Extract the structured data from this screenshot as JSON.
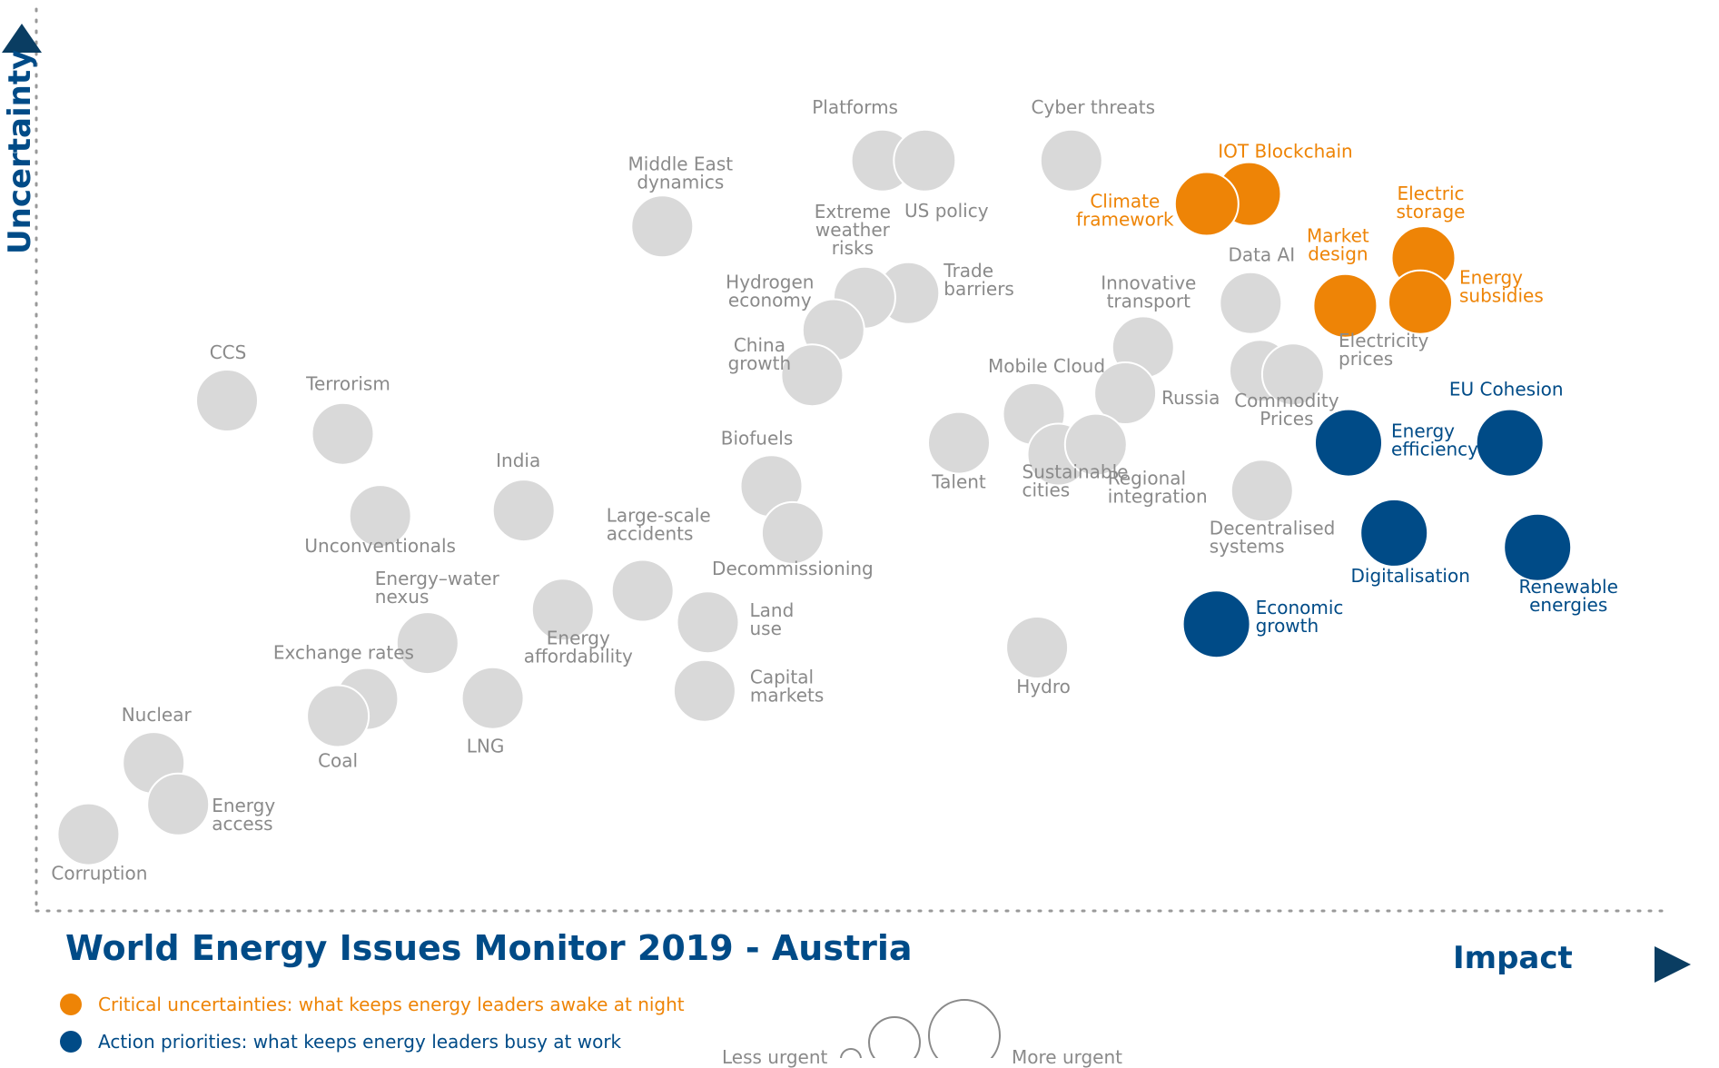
{
  "title": "World Energy Issues Monitor 2019 - Austria",
  "legend": {
    "critical": {
      "label": "Critical uncertainties: what keeps energy leaders awake at night",
      "color": "#ee8406"
    },
    "action": {
      "label": "Action priorities: what keeps energy leaders busy at work",
      "color": "#004b87"
    },
    "size_less": "Less urgent",
    "size_more": "More urgent"
  },
  "colors": {
    "neutral": "#d9d9d9",
    "critical": "#ee8406",
    "action": "#004b87",
    "axis": "#004b87",
    "label_neutral": "#8a8a8a"
  },
  "chart_data": {
    "type": "scatter",
    "title": "World Energy Issues Monitor 2019 - Austria",
    "xlabel": "Impact",
    "ylabel": "Uncertainty",
    "xlim": [
      0,
      100
    ],
    "ylim": [
      0,
      100
    ],
    "grid": false,
    "legend_position": "bottom-left",
    "points": [
      {
        "label": "Platforms",
        "x": 51.9,
        "y": 83.2,
        "cat": "neutral"
      },
      {
        "label": "US policy",
        "x": 54.5,
        "y": 83.2,
        "cat": "neutral"
      },
      {
        "label": "Cyber threats",
        "x": 63.5,
        "y": 83.2,
        "cat": "neutral"
      },
      {
        "label": "IOT Blockchain",
        "x": 74.4,
        "y": 79.5,
        "cat": "critical"
      },
      {
        "label": "Climate framework",
        "x": 71.8,
        "y": 78.4,
        "cat": "critical"
      },
      {
        "label": "Middle East dynamics",
        "x": 38.4,
        "y": 75.9,
        "cat": "neutral"
      },
      {
        "label": "Electric storage",
        "x": 85.1,
        "y": 72.4,
        "cat": "critical"
      },
      {
        "label": "Market design",
        "x": 80.3,
        "y": 67.1,
        "cat": "critical"
      },
      {
        "label": "Energy subsidies",
        "x": 84.9,
        "y": 67.5,
        "cat": "critical"
      },
      {
        "label": "Data AI",
        "x": 74.5,
        "y": 67.4,
        "cat": "neutral"
      },
      {
        "label": "Trade barriers",
        "x": 53.5,
        "y": 68.5,
        "cat": "neutral"
      },
      {
        "label": "Extreme weather risks",
        "x": 50.8,
        "y": 68.0,
        "cat": "neutral"
      },
      {
        "label": "Hydrogen economy",
        "x": 48.9,
        "y": 64.4,
        "cat": "neutral"
      },
      {
        "label": "China growth",
        "x": 47.6,
        "y": 59.4,
        "cat": "neutral"
      },
      {
        "label": "Innovative transport",
        "x": 67.9,
        "y": 62.5,
        "cat": "neutral"
      },
      {
        "label": "Russia",
        "x": 66.8,
        "y": 57.4,
        "cat": "neutral"
      },
      {
        "label": "Electricity prices",
        "x": 75.1,
        "y": 59.9,
        "cat": "neutral"
      },
      {
        "label": "Commodity Prices",
        "x": 77.1,
        "y": 59.5,
        "cat": "neutral"
      },
      {
        "label": "Mobile Cloud",
        "x": 61.2,
        "y": 55.1,
        "cat": "neutral"
      },
      {
        "label": "Sustainable cities",
        "x": 62.7,
        "y": 50.6,
        "cat": "neutral"
      },
      {
        "label": "Regional integration",
        "x": 65.0,
        "y": 51.7,
        "cat": "neutral"
      },
      {
        "label": "Talent",
        "x": 56.6,
        "y": 51.9,
        "cat": "neutral"
      },
      {
        "label": "EU Cohesion",
        "x": 90.4,
        "y": 51.9,
        "cat": "action"
      },
      {
        "label": "Energy efficiency",
        "x": 80.5,
        "y": 51.9,
        "cat": "action"
      },
      {
        "label": "Decentralised systems",
        "x": 75.2,
        "y": 46.6,
        "cat": "neutral"
      },
      {
        "label": "Digitalisation",
        "x": 83.3,
        "y": 41.9,
        "cat": "action"
      },
      {
        "label": "Renewable energies",
        "x": 92.1,
        "y": 40.3,
        "cat": "action"
      },
      {
        "label": "Economic growth",
        "x": 72.4,
        "y": 31.8,
        "cat": "action"
      },
      {
        "label": "Biofuels",
        "x": 45.1,
        "y": 47.1,
        "cat": "neutral"
      },
      {
        "label": "Decommissioning",
        "x": 46.4,
        "y": 41.9,
        "cat": "neutral"
      },
      {
        "label": "Large-scale accidents",
        "x": 37.2,
        "y": 35.5,
        "cat": "neutral"
      },
      {
        "label": "Land use",
        "x": 41.2,
        "y": 32.0,
        "cat": "neutral"
      },
      {
        "label": "Capital markets",
        "x": 41.0,
        "y": 24.4,
        "cat": "neutral"
      },
      {
        "label": "Hydro",
        "x": 61.4,
        "y": 29.2,
        "cat": "neutral"
      },
      {
        "label": "CCS",
        "x": 11.7,
        "y": 56.6,
        "cat": "neutral"
      },
      {
        "label": "Terrorism",
        "x": 18.8,
        "y": 52.9,
        "cat": "neutral"
      },
      {
        "label": "Unconventionals",
        "x": 21.1,
        "y": 43.8,
        "cat": "neutral"
      },
      {
        "label": "India",
        "x": 29.9,
        "y": 44.4,
        "cat": "neutral"
      },
      {
        "label": "Energy affordability",
        "x": 32.3,
        "y": 33.4,
        "cat": "neutral"
      },
      {
        "label": "Energy–water nexus",
        "x": 24.0,
        "y": 29.7,
        "cat": "neutral"
      },
      {
        "label": "LNG",
        "x": 28.0,
        "y": 23.6,
        "cat": "neutral"
      },
      {
        "label": "Exchange rates",
        "x": 20.3,
        "y": 23.5,
        "cat": "neutral"
      },
      {
        "label": "Coal",
        "x": 18.5,
        "y": 21.6,
        "cat": "neutral"
      },
      {
        "label": "Nuclear",
        "x": 7.2,
        "y": 16.4,
        "cat": "neutral"
      },
      {
        "label": "Energy access",
        "x": 8.7,
        "y": 11.8,
        "cat": "neutral"
      },
      {
        "label": "Corruption",
        "x": 3.2,
        "y": 8.5,
        "cat": "neutral"
      }
    ]
  }
}
